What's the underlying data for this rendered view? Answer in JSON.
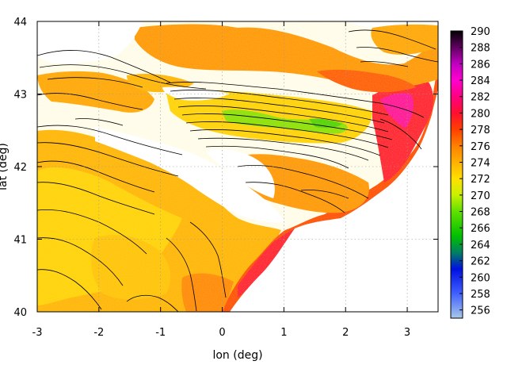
{
  "map": {
    "xlabel": "lon (deg)",
    "ylabel": "lat (deg)",
    "xlim": [
      -3,
      3.5
    ],
    "ylim": [
      40,
      44
    ],
    "x_ticks": [
      -3,
      -2,
      -1,
      0,
      1,
      2,
      3
    ],
    "y_ticks": [
      40,
      41,
      42,
      43,
      44
    ],
    "grid": "dotted",
    "colorbar": {
      "min": 255,
      "max": 290,
      "ticks": [
        256,
        258,
        260,
        262,
        264,
        266,
        268,
        270,
        272,
        274,
        276,
        278,
        280,
        282,
        284,
        286,
        288,
        290
      ],
      "stops": [
        {
          "value": 255,
          "color": "#a8c8e8"
        },
        {
          "value": 258,
          "color": "#4060ff"
        },
        {
          "value": 261,
          "color": "#0010e0"
        },
        {
          "value": 263,
          "color": "#008060"
        },
        {
          "value": 265,
          "color": "#00c000"
        },
        {
          "value": 268,
          "color": "#60e000"
        },
        {
          "value": 270,
          "color": "#c8f000"
        },
        {
          "value": 272,
          "color": "#ffe000"
        },
        {
          "value": 274,
          "color": "#ffb000"
        },
        {
          "value": 276,
          "color": "#ff8000"
        },
        {
          "value": 278,
          "color": "#ff4000"
        },
        {
          "value": 280,
          "color": "#ff1030"
        },
        {
          "value": 282,
          "color": "#ff0080"
        },
        {
          "value": 284,
          "color": "#ff00d0"
        },
        {
          "value": 286,
          "color": "#c000c0"
        },
        {
          "value": 288,
          "color": "#600060"
        },
        {
          "value": 290,
          "color": "#000000"
        }
      ]
    },
    "layers": {
      "fill_color": "#ffffff",
      "contour_color": "#000000"
    }
  }
}
